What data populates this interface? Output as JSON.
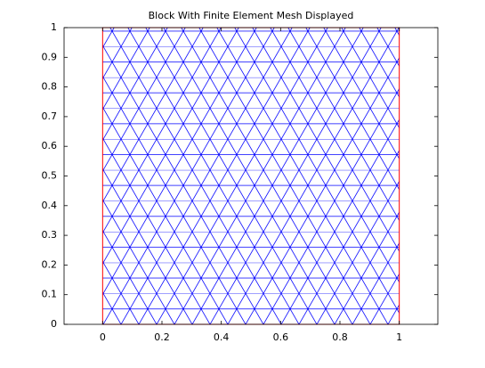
{
  "chart_data": {
    "type": "mesh",
    "title": "Block With Finite Element Mesh Displayed",
    "xlim": [
      -0.13,
      1.13
    ],
    "ylim": [
      0,
      1
    ],
    "xticks": [
      0,
      0.2,
      0.4,
      0.6,
      0.8,
      1
    ],
    "yticks": [
      0,
      0.1,
      0.2,
      0.3,
      0.4,
      0.5,
      0.6,
      0.7,
      0.8,
      0.9,
      1
    ],
    "mesh_color": "#0000ff",
    "boundary_color": "#ff0000"
  }
}
